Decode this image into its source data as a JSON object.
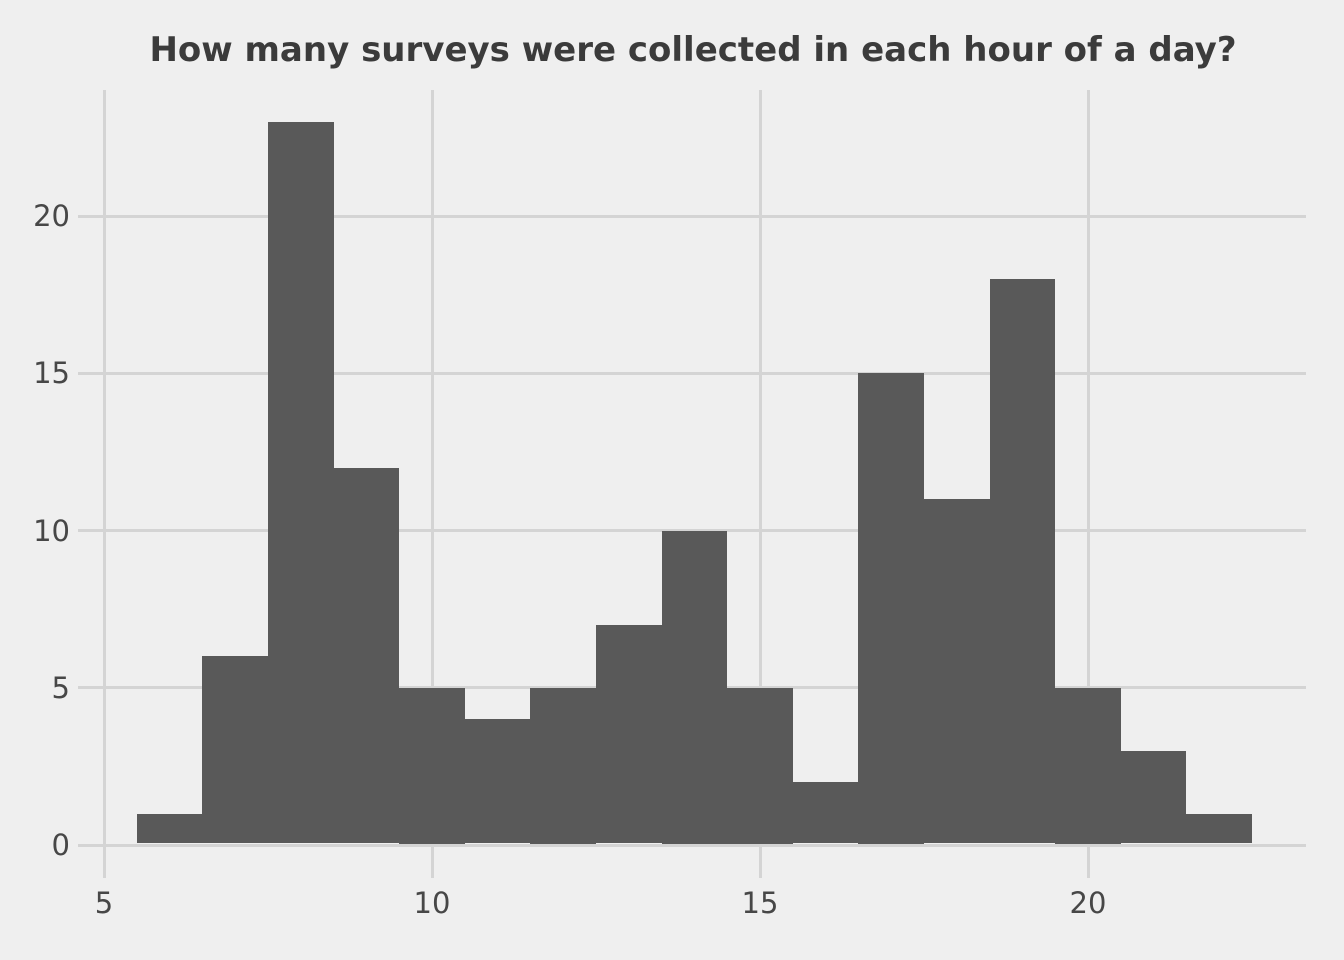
{
  "chart_data": {
    "type": "bar",
    "subtype": "histogram",
    "title": "How many surveys were collected in each hour of a day?",
    "xlabel": "",
    "ylabel": "",
    "bin_width": 1,
    "bin_centers": [
      6,
      7,
      8,
      9,
      10,
      11,
      12,
      13,
      14,
      15,
      16,
      17,
      18,
      19,
      20,
      21,
      22
    ],
    "values": [
      1,
      6,
      23,
      12,
      5,
      4,
      5,
      7,
      10,
      5,
      2,
      15,
      11,
      18,
      5,
      3,
      1
    ],
    "x_ticks": [
      5,
      10,
      15,
      20
    ],
    "x_tick_labels": [
      "5",
      "10",
      "15",
      "20"
    ],
    "y_ticks": [
      0,
      5,
      10,
      15,
      20
    ],
    "y_tick_labels": [
      "0",
      "5",
      "10",
      "15",
      "20"
    ],
    "xlim": [
      4.6,
      23.35
    ],
    "ylim": [
      0,
      24
    ],
    "grid": true,
    "legend": "none",
    "colors": {
      "background": "#efefef",
      "gridline": "#d4d4d4",
      "bar_fill": "#595959",
      "title_text": "#3b3b3b",
      "tick_label_text": "#474747"
    }
  }
}
